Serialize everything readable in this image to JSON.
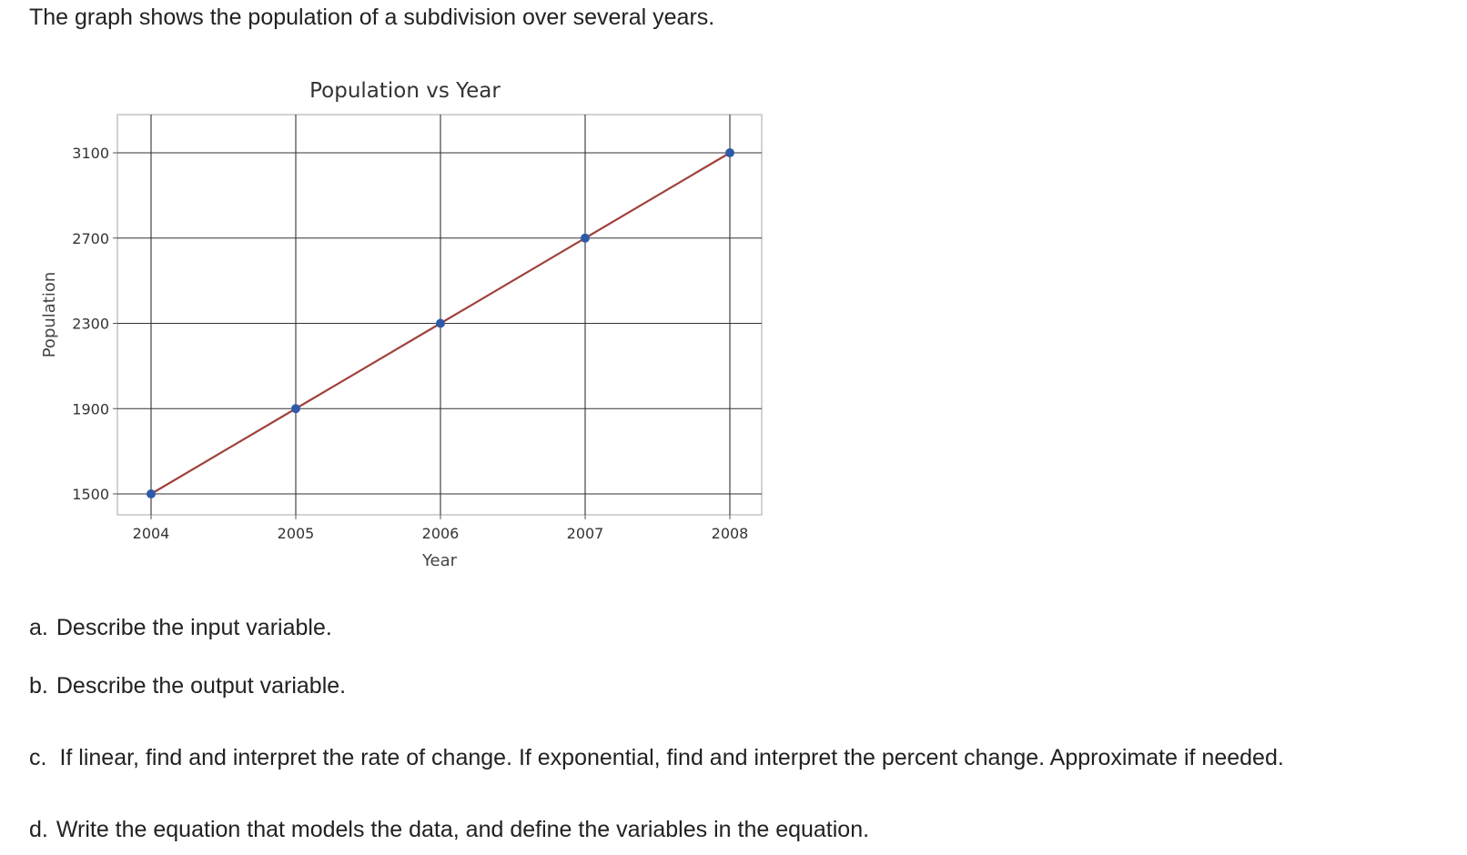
{
  "intro": "The graph shows the population of a subdivision over several years.",
  "chart_data": {
    "type": "line",
    "title": "Population vs Year",
    "xlabel": "Year",
    "ylabel": "Population",
    "x": [
      2004,
      2005,
      2006,
      2007,
      2008
    ],
    "series": [
      {
        "values": [
          1500,
          1900,
          2300,
          2700,
          3100
        ],
        "line_color": "#a0413a",
        "marker_color": "#2e5aa8"
      }
    ],
    "x_ticks": [
      "2004",
      "2005",
      "2006",
      "2007",
      "2008"
    ],
    "y_ticks": [
      "1500",
      "1900",
      "2300",
      "2700",
      "3100"
    ],
    "grid": true,
    "legend": "none"
  },
  "questions": [
    {
      "label": "a.",
      "text": "Describe the input variable."
    },
    {
      "label": "b.",
      "text": "Describe the output variable."
    },
    {
      "label": "c.",
      "text": "If linear, find and interpret the rate of change.  If exponential, find and interpret the percent change.  Approximate if needed."
    },
    {
      "label": "d.",
      "text": "Write the equation that models the data,  and define the variables in the equation."
    }
  ]
}
